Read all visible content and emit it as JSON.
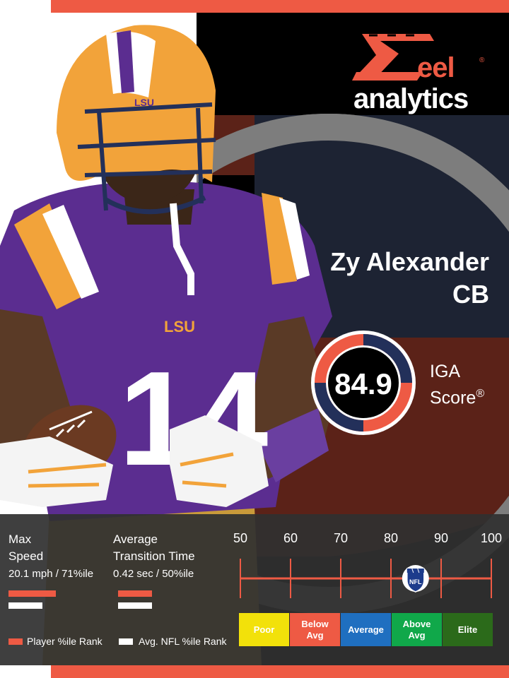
{
  "brand": {
    "logo_r": "R",
    "logo_eel": "eel",
    "logo_reg": "®",
    "logo_word": "analytics"
  },
  "player": {
    "name": "Zy Alexander",
    "position": "CB"
  },
  "score": {
    "value": "84.9",
    "label_line1": "IGA",
    "label_line2": "Score",
    "label_reg": "®"
  },
  "stats": [
    {
      "title_line1": "Max",
      "title_line2": "Speed",
      "value": "20.1 mph / 71%ile",
      "player_pct": 71,
      "nfl_pct": 50
    },
    {
      "title_line1": "Average",
      "title_line2": "Transition Time",
      "value": "0.42 sec / 50%ile",
      "player_pct": 50,
      "nfl_pct": 50
    }
  ],
  "legend": {
    "player": "Player %ile Rank",
    "nfl": "Avg. NFL %ile Rank"
  },
  "scale": {
    "ticks": [
      "50",
      "60",
      "70",
      "80",
      "90",
      "100"
    ],
    "marker_value": 84.9,
    "marker_icon": "nfl-shield-icon",
    "marker_text": "NFL"
  },
  "categories": [
    {
      "label": "Poor",
      "color": "#f2e10a",
      "text_color": "#ffffff"
    },
    {
      "label": "Below Avg",
      "color": "#ee5a44",
      "text_color": "#ffffff"
    },
    {
      "label": "Average",
      "color": "#1f6fc0",
      "text_color": "#ffffff"
    },
    {
      "label": "Above Avg",
      "color": "#10a84a",
      "text_color": "#ffffff"
    },
    {
      "label": "Elite",
      "color": "#2b6a1a",
      "text_color": "#ffffff"
    }
  ],
  "colors": {
    "accent": "#ee5a44",
    "lsu_purple": "#5b2d90",
    "lsu_gold": "#f2a33a"
  },
  "photo": {
    "jersey_number": "14",
    "jersey_text": "LSU",
    "helmet_text": "LSU"
  }
}
